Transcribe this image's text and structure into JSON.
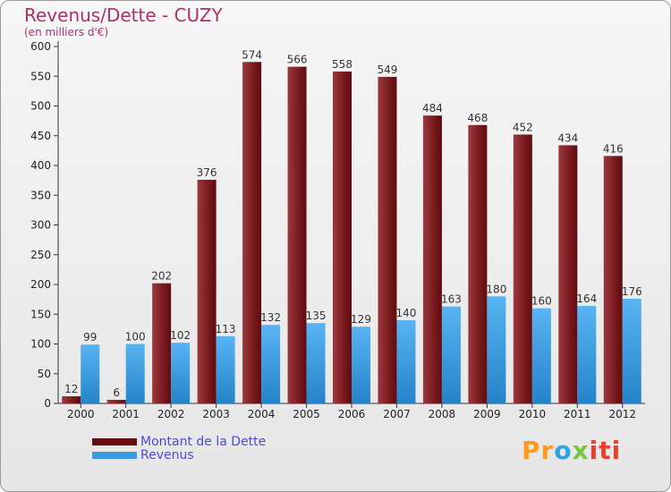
{
  "chart_data": {
    "type": "bar",
    "title": "Revenus/Dette - CUZY",
    "subtitle": "(en milliers d'€)",
    "categories": [
      "2000",
      "2001",
      "2002",
      "2003",
      "2004",
      "2005",
      "2006",
      "2007",
      "2008",
      "2009",
      "2010",
      "2011",
      "2012"
    ],
    "series": [
      {
        "name": "Montant de la Dette",
        "color": "#7a1418",
        "values": [
          12,
          6,
          202,
          376,
          574,
          566,
          558,
          549,
          484,
          468,
          452,
          434,
          416
        ]
      },
      {
        "name": "Revenus",
        "color": "#3a9be0",
        "values": [
          99,
          100,
          102,
          113,
          132,
          135,
          129,
          140,
          163,
          180,
          160,
          164,
          176
        ]
      }
    ],
    "ylim": [
      0,
      600
    ],
    "yticks": [
      0,
      50,
      100,
      150,
      200,
      250,
      300,
      350,
      400,
      450,
      500,
      550,
      600
    ],
    "grid": false,
    "legend": "bottom-left"
  },
  "brand": {
    "letters": [
      "Pr",
      "o",
      "x",
      "iti"
    ],
    "colors": [
      "#ff9a1f",
      "#2ea3e3",
      "#7bc443",
      "#e6412a"
    ]
  }
}
